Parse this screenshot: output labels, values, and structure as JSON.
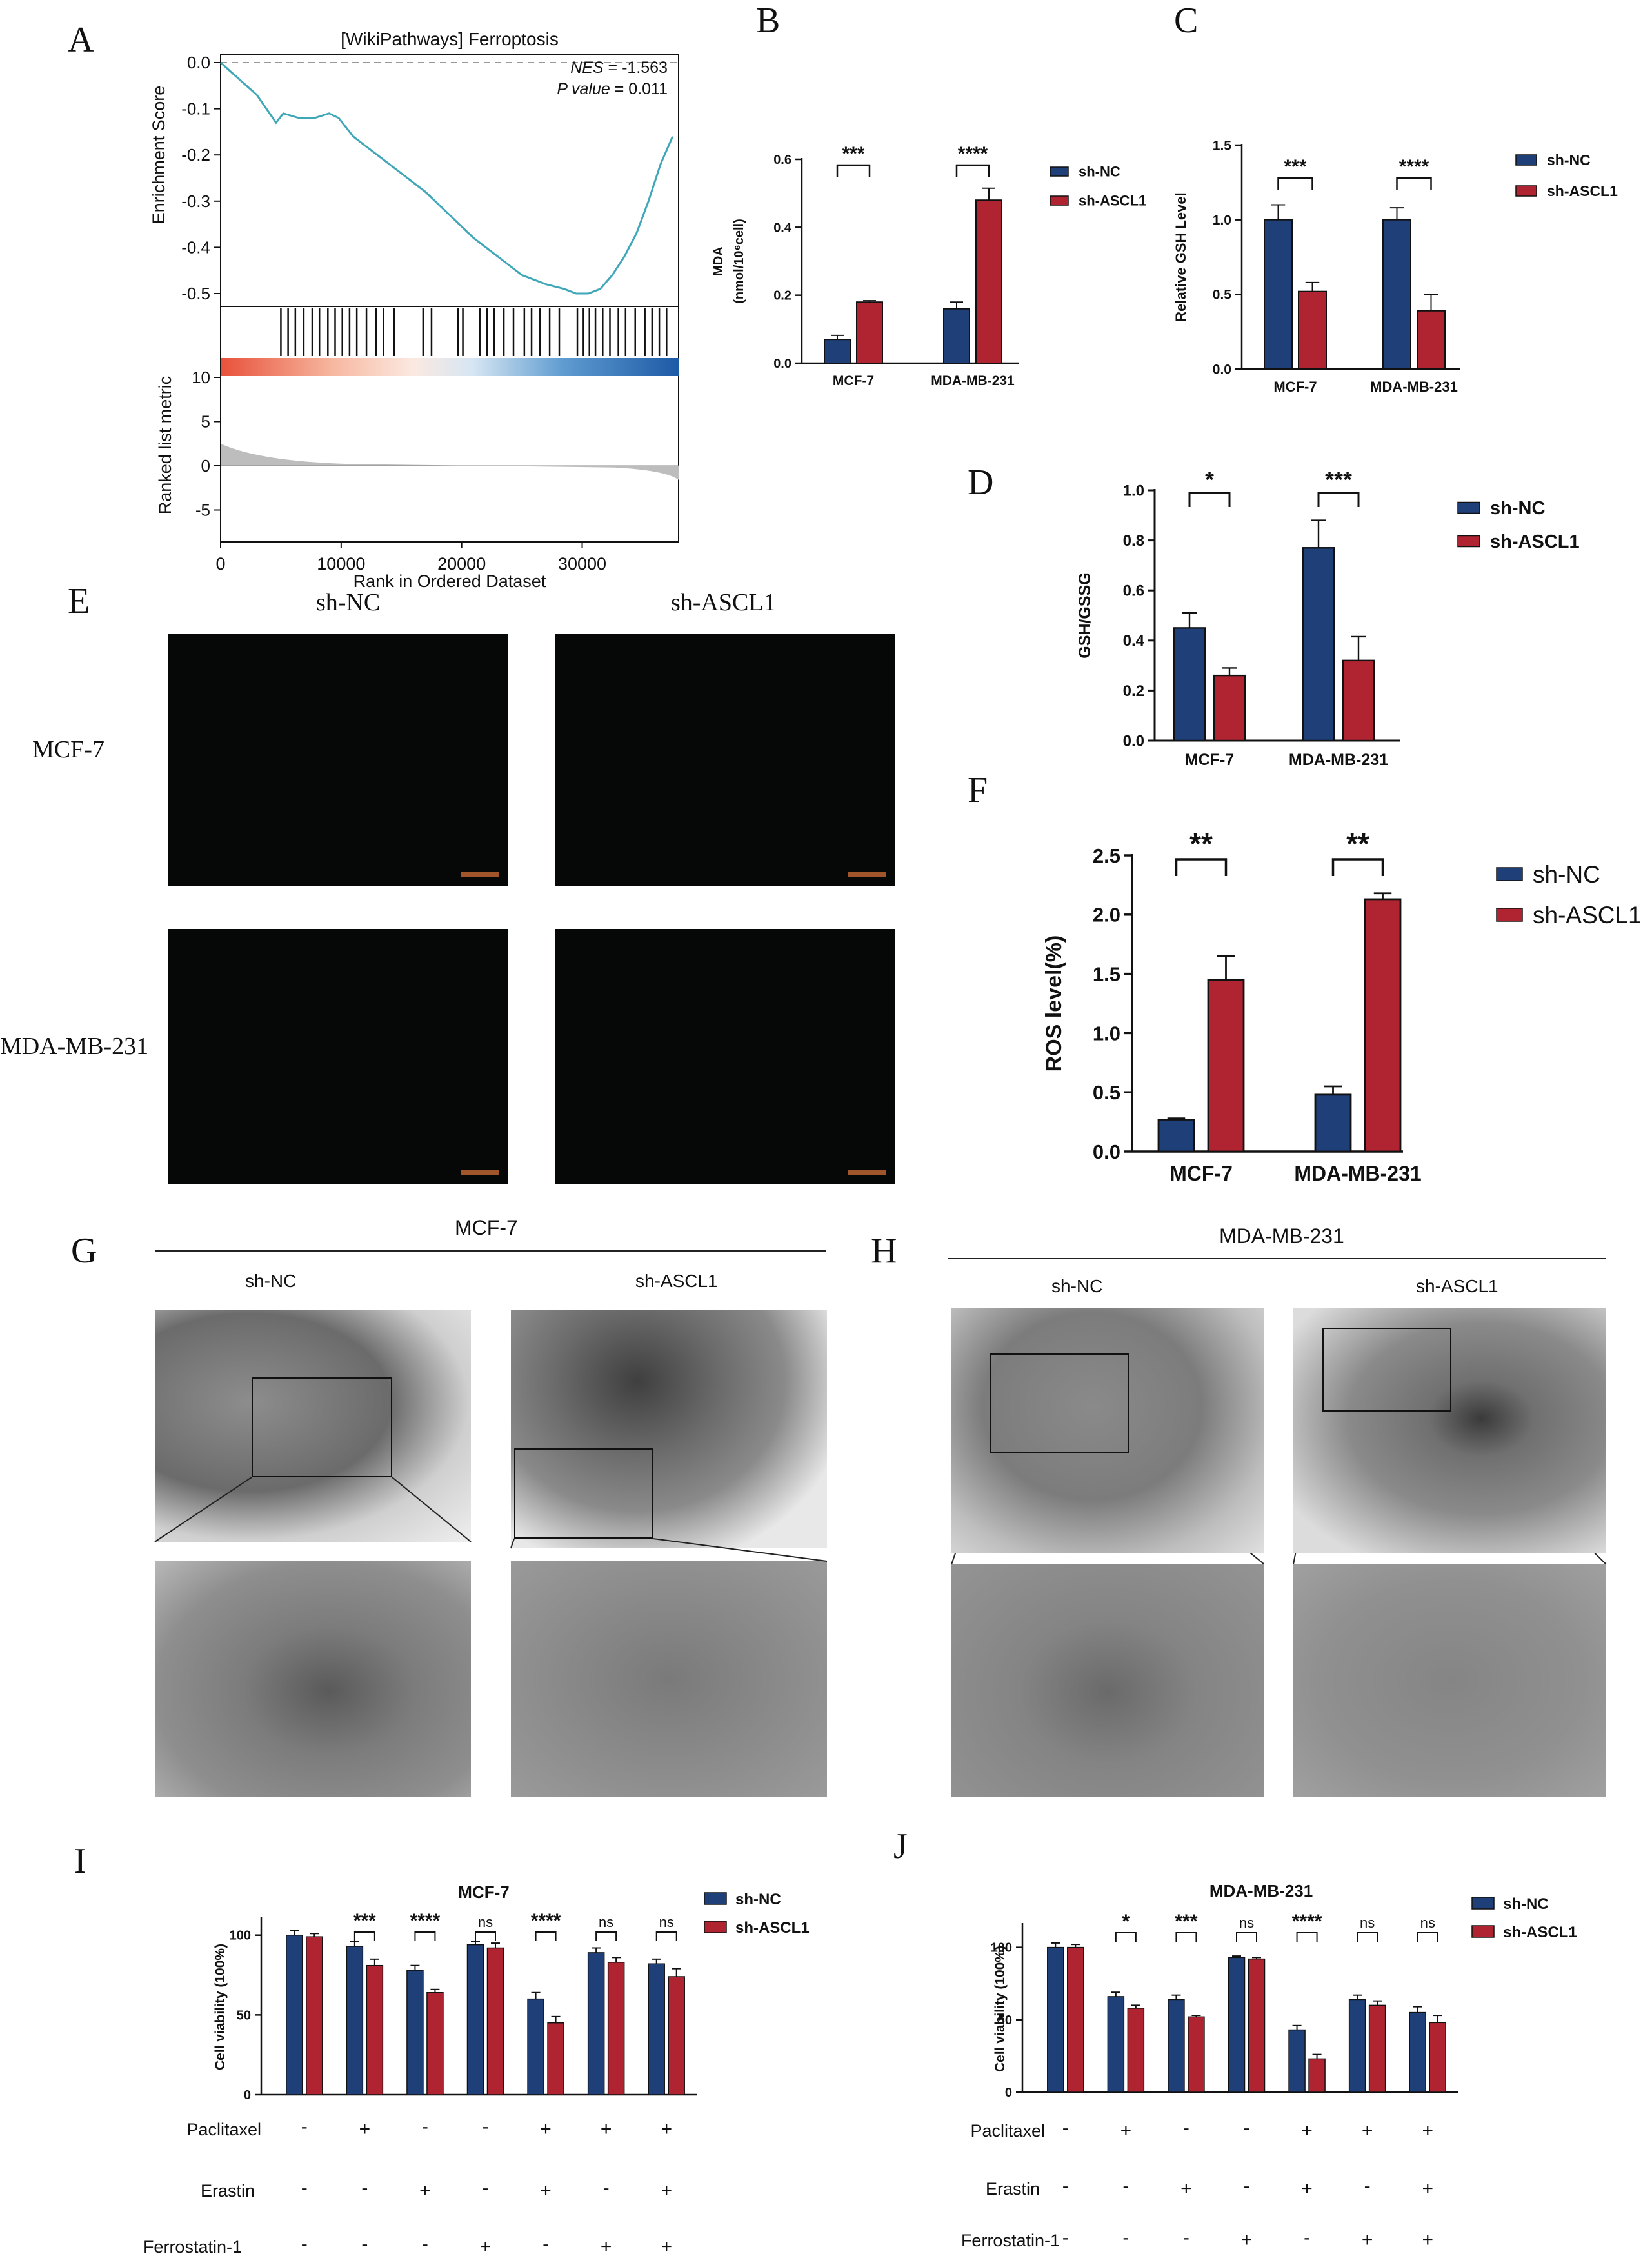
{
  "panel_letters": [
    "A",
    "B",
    "C",
    "D",
    "E",
    "F",
    "G",
    "H",
    "I",
    "J"
  ],
  "colors": {
    "nc": "#1f3f78",
    "ascl1": "#b02431",
    "gsea_line": "#3fa7b8"
  },
  "panel_e": {
    "col_labels": [
      "sh-NC",
      "sh-ASCL1"
    ],
    "row_labels": [
      "MCF-7",
      "MDA-MB-231"
    ]
  },
  "panel_g": {
    "title": "MCF-7",
    "labels": [
      "sh-NC",
      "sh-ASCL1"
    ]
  },
  "panel_h": {
    "title": "MDA-MB-231",
    "labels": [
      "sh-NC",
      "sh-ASCL1"
    ]
  },
  "treatments": {
    "row_labels": [
      "Paclitaxel",
      "Erastin",
      "Ferrostatin-1"
    ],
    "paclitaxel": [
      "-",
      "+",
      "-",
      "-",
      "+",
      "+",
      "+"
    ],
    "erastin": [
      "-",
      "-",
      "+",
      "-",
      "+",
      "-",
      "+"
    ],
    "ferrostatin": [
      "-",
      "-",
      "-",
      "+",
      "-",
      "+",
      "+"
    ]
  },
  "chart_data": [
    {
      "id": "A",
      "type": "line",
      "title": "[WikiPathways] Ferroptosis",
      "ylabel_top": "Enrichment Score",
      "ylabel_bottom": "Ranked list metric",
      "xlabel": "Rank in Ordered Dataset",
      "nes_label": "NES",
      "nes_value": " = -1.563",
      "p_label": "P value",
      "p_value": " = 0.011",
      "ylim": [
        -0.52,
        0.0
      ],
      "yticks": [
        "0.0",
        "-0.1",
        "-0.2",
        "-0.3",
        "-0.4",
        "-0.5"
      ],
      "ytick_values": [
        0.0,
        -0.1,
        -0.2,
        -0.3,
        -0.4,
        -0.5
      ],
      "xlim": [
        0,
        38000
      ],
      "xticks": [
        "0",
        "10000",
        "20000",
        "30000"
      ],
      "xtick_values": [
        0,
        10000,
        20000,
        30000
      ],
      "metric_ticks": [
        "10",
        "5",
        "0",
        "-5"
      ],
      "metric_values": [
        10,
        5,
        0,
        -5
      ],
      "x": [
        0,
        1500,
        3000,
        4600,
        5200,
        6500,
        7800,
        9000,
        9800,
        11000,
        13000,
        15000,
        17000,
        19000,
        21000,
        23000,
        25000,
        27000,
        28500,
        29500,
        30500,
        31500,
        32500,
        33500,
        34500,
        35500,
        36500,
        37500
      ],
      "y": [
        0.0,
        -0.035,
        -0.07,
        -0.13,
        -0.11,
        -0.12,
        -0.12,
        -0.11,
        -0.12,
        -0.16,
        -0.2,
        -0.24,
        -0.28,
        -0.33,
        -0.38,
        -0.42,
        -0.46,
        -0.48,
        -0.49,
        -0.5,
        -0.5,
        -0.49,
        -0.46,
        -0.42,
        -0.37,
        -0.3,
        -0.22,
        -0.16
      ],
      "hits": [
        5000,
        5600,
        6200,
        6900,
        7600,
        8200,
        8900,
        9500,
        10100,
        10700,
        11300,
        12100,
        12900,
        13500,
        14400,
        16800,
        17500,
        19700,
        20100,
        21500,
        22100,
        22700,
        23500,
        24300,
        25200,
        25800,
        26500,
        27300,
        28100,
        29600,
        30100,
        30600,
        31100,
        31700,
        32300,
        33000,
        33600,
        34400,
        35200,
        35800,
        36400,
        37000
      ]
    },
    {
      "id": "B",
      "type": "bar",
      "categories": [
        "MCF-7",
        "MDA-MB-231"
      ],
      "ylabel": "MDA",
      "ylabel2": "(nmol/10⁶cell)",
      "ylim": [
        0,
        0.6
      ],
      "yticks": [
        "0.0",
        "0.2",
        "0.4",
        "0.6"
      ],
      "ytick_values": [
        0,
        0.2,
        0.4,
        0.6
      ],
      "series": [
        {
          "name": "sh-NC",
          "values": [
            0.07,
            0.16
          ],
          "err": [
            0.012,
            0.02
          ]
        },
        {
          "name": "sh-ASCL1",
          "values": [
            0.18,
            0.48
          ],
          "err": [
            0.004,
            0.035
          ]
        }
      ],
      "sig": [
        "***",
        "****"
      ]
    },
    {
      "id": "C",
      "type": "bar",
      "categories": [
        "MCF-7",
        "MDA-MB-231"
      ],
      "ylabel": "Relative GSH Level",
      "ylim": [
        0,
        1.5
      ],
      "yticks": [
        "0.0",
        "0.5",
        "1.0",
        "1.5"
      ],
      "ytick_values": [
        0,
        0.5,
        1.0,
        1.5
      ],
      "series": [
        {
          "name": "sh-NC",
          "values": [
            1.0,
            1.0
          ],
          "err": [
            0.1,
            0.08
          ]
        },
        {
          "name": "sh-ASCL1",
          "values": [
            0.52,
            0.39
          ],
          "err": [
            0.06,
            0.11
          ]
        }
      ],
      "sig": [
        "***",
        "****"
      ]
    },
    {
      "id": "D",
      "type": "bar",
      "categories": [
        "MCF-7",
        "MDA-MB-231"
      ],
      "ylabel": "GSH/GSSG",
      "ylim": [
        0,
        1.0
      ],
      "yticks": [
        "0.0",
        "0.2",
        "0.4",
        "0.6",
        "0.8",
        "1.0"
      ],
      "ytick_values": [
        0,
        0.2,
        0.4,
        0.6,
        0.8,
        1.0
      ],
      "series": [
        {
          "name": "sh-NC",
          "values": [
            0.45,
            0.77
          ],
          "err": [
            0.06,
            0.11
          ]
        },
        {
          "name": "sh-ASCL1",
          "values": [
            0.26,
            0.32
          ],
          "err": [
            0.03,
            0.095
          ]
        }
      ],
      "sig": [
        "*",
        "***"
      ]
    },
    {
      "id": "F",
      "type": "bar",
      "categories": [
        "MCF-7",
        "MDA-MB-231"
      ],
      "ylabel": "ROS level(%)",
      "ylim": [
        0,
        2.5
      ],
      "yticks": [
        "0.0",
        "0.5",
        "1.0",
        "1.5",
        "2.0",
        "2.5"
      ],
      "ytick_values": [
        0,
        0.5,
        1.0,
        1.5,
        2.0,
        2.5
      ],
      "series": [
        {
          "name": "sh-NC",
          "values": [
            0.27,
            0.48
          ],
          "err": [
            0.01,
            0.07
          ]
        },
        {
          "name": "sh-ASCL1",
          "values": [
            1.45,
            2.13
          ],
          "err": [
            0.2,
            0.05
          ]
        }
      ],
      "sig": [
        "**",
        "**"
      ]
    },
    {
      "id": "I",
      "type": "bar",
      "title": "MCF-7",
      "ylabel": "Cell viability (100%)",
      "ylim": [
        0,
        110
      ],
      "yticks": [
        "0",
        "50",
        "100"
      ],
      "ytick_values": [
        0,
        50,
        100
      ],
      "group_count": 7,
      "series": [
        {
          "name": "sh-NC",
          "values": [
            100,
            93,
            78,
            94,
            60,
            89,
            82
          ],
          "err": [
            3,
            3,
            3,
            2,
            4,
            3,
            3
          ]
        },
        {
          "name": "sh-ASCL1",
          "values": [
            99,
            81,
            64,
            92,
            45,
            83,
            74
          ],
          "err": [
            2,
            4,
            2,
            3,
            4,
            3,
            5
          ]
        }
      ],
      "sig": [
        "",
        "***",
        "****",
        "ns",
        "****",
        "ns",
        "ns"
      ]
    },
    {
      "id": "J",
      "type": "bar",
      "title": "MDA-MB-231",
      "ylabel": "Cell viability (100%)",
      "ylim": [
        0,
        115
      ],
      "yticks": [
        "0",
        "50",
        "100"
      ],
      "ytick_values": [
        0,
        50,
        100
      ],
      "group_count": 7,
      "series": [
        {
          "name": "sh-NC",
          "values": [
            100,
            66,
            64,
            93,
            43,
            64,
            55
          ],
          "err": [
            3,
            3,
            3,
            1,
            3,
            3,
            4
          ]
        },
        {
          "name": "sh-ASCL1",
          "values": [
            100,
            58,
            52,
            92,
            23,
            60,
            48
          ],
          "err": [
            2,
            2,
            1,
            1,
            3,
            3,
            5
          ]
        }
      ],
      "sig": [
        "",
        "*",
        "***",
        "ns",
        "****",
        "ns",
        "ns"
      ]
    }
  ]
}
